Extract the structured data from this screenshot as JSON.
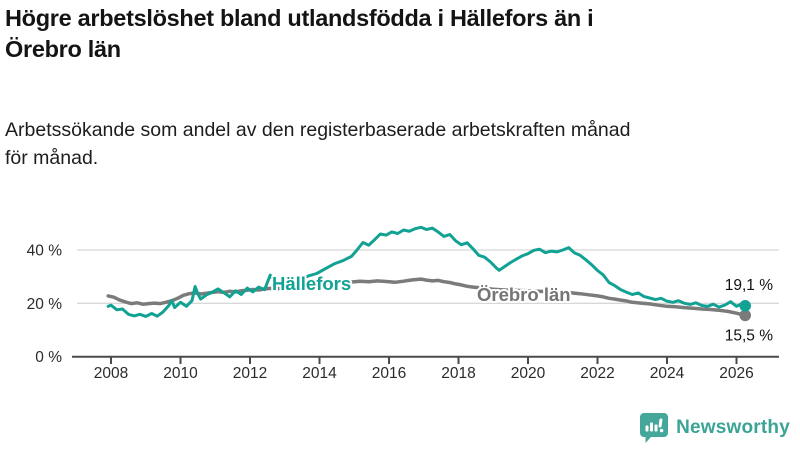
{
  "header": {
    "title_lines": [
      "Högre arbetslöshet bland utlandsfödda i Hällefors än i",
      "Örebro län"
    ],
    "subtitle_lines": [
      "Arbetssökande som andel av den registerbaserade arbetskraften månad",
      "för månad."
    ]
  },
  "footer": {
    "brand": "Newsworthy",
    "brand_color": "#3BA495"
  },
  "chart_data": {
    "type": "line",
    "unit": "%",
    "x_axis": {
      "ticks": [
        2008,
        2010,
        2012,
        2014,
        2016,
        2018,
        2020,
        2022,
        2024,
        2026
      ],
      "range": [
        2007.9,
        2026.4
      ]
    },
    "y_axis": {
      "ticks": [
        {
          "value": 0,
          "label": "0 %"
        },
        {
          "value": 20,
          "label": "20 %"
        },
        {
          "value": 40,
          "label": "40 %"
        }
      ],
      "range": [
        0,
        50
      ],
      "grid": true
    },
    "style": {
      "grid_color": "#d8d8d8",
      "axis_color": "#4a4a4a",
      "tick_label_color": "#2b2b2b",
      "end_label_color": "#111111",
      "background": "#ffffff"
    },
    "series": [
      {
        "id": "hallefors",
        "label": "Hällefors",
        "color": "#11A294",
        "width": 3,
        "end_label": "19,1 %",
        "end_value": 19.1,
        "points": [
          [
            2007.92,
            18.9
          ],
          [
            2008.0,
            19.3
          ],
          [
            2008.17,
            17.6
          ],
          [
            2008.33,
            17.9
          ],
          [
            2008.5,
            15.9
          ],
          [
            2008.67,
            15.3
          ],
          [
            2008.83,
            15.9
          ],
          [
            2009.0,
            15.1
          ],
          [
            2009.17,
            16.2
          ],
          [
            2009.33,
            15.2
          ],
          [
            2009.5,
            16.8
          ],
          [
            2009.67,
            19.3
          ],
          [
            2009.75,
            21.0
          ],
          [
            2009.83,
            18.4
          ],
          [
            2010.0,
            20.4
          ],
          [
            2010.17,
            18.9
          ],
          [
            2010.33,
            21.0
          ],
          [
            2010.42,
            26.3
          ],
          [
            2010.5,
            23.5
          ],
          [
            2010.58,
            21.6
          ],
          [
            2010.75,
            23.2
          ],
          [
            2010.92,
            24.2
          ],
          [
            2011.08,
            25.4
          ],
          [
            2011.25,
            24.0
          ],
          [
            2011.42,
            22.4
          ],
          [
            2011.58,
            24.7
          ],
          [
            2011.75,
            23.3
          ],
          [
            2011.92,
            25.7
          ],
          [
            2012.08,
            24.3
          ],
          [
            2012.25,
            26.1
          ],
          [
            2012.42,
            25.1
          ],
          [
            2012.58,
            30.6
          ],
          [
            2012.75,
            27.6
          ],
          [
            2012.92,
            28.4
          ],
          [
            2013.17,
            29.3
          ],
          [
            2013.42,
            28.7
          ],
          [
            2013.67,
            30.2
          ],
          [
            2013.92,
            31.2
          ],
          [
            2014.17,
            33.0
          ],
          [
            2014.42,
            34.8
          ],
          [
            2014.67,
            36.0
          ],
          [
            2014.92,
            37.6
          ],
          [
            2015.08,
            40.0
          ],
          [
            2015.25,
            42.8
          ],
          [
            2015.42,
            41.8
          ],
          [
            2015.58,
            43.8
          ],
          [
            2015.75,
            46.0
          ],
          [
            2015.92,
            45.6
          ],
          [
            2016.08,
            46.8
          ],
          [
            2016.25,
            46.2
          ],
          [
            2016.42,
            47.5
          ],
          [
            2016.58,
            47.0
          ],
          [
            2016.75,
            48.0
          ],
          [
            2016.92,
            48.5
          ],
          [
            2017.08,
            47.7
          ],
          [
            2017.25,
            48.2
          ],
          [
            2017.42,
            46.7
          ],
          [
            2017.58,
            45.1
          ],
          [
            2017.75,
            45.8
          ],
          [
            2017.92,
            43.4
          ],
          [
            2018.08,
            42.0
          ],
          [
            2018.25,
            42.7
          ],
          [
            2018.42,
            40.4
          ],
          [
            2018.58,
            38.0
          ],
          [
            2018.75,
            37.3
          ],
          [
            2018.92,
            35.5
          ],
          [
            2019.08,
            33.4
          ],
          [
            2019.17,
            32.4
          ],
          [
            2019.33,
            33.8
          ],
          [
            2019.5,
            35.3
          ],
          [
            2019.67,
            36.6
          ],
          [
            2019.83,
            37.8
          ],
          [
            2020.0,
            38.6
          ],
          [
            2020.17,
            39.9
          ],
          [
            2020.33,
            40.3
          ],
          [
            2020.5,
            39.0
          ],
          [
            2020.67,
            39.6
          ],
          [
            2020.83,
            39.3
          ],
          [
            2021.0,
            40.0
          ],
          [
            2021.17,
            40.9
          ],
          [
            2021.33,
            39.0
          ],
          [
            2021.5,
            38.0
          ],
          [
            2021.67,
            36.3
          ],
          [
            2021.83,
            34.5
          ],
          [
            2022.0,
            32.3
          ],
          [
            2022.17,
            30.6
          ],
          [
            2022.33,
            27.8
          ],
          [
            2022.5,
            26.6
          ],
          [
            2022.67,
            25.1
          ],
          [
            2022.83,
            24.2
          ],
          [
            2023.0,
            23.3
          ],
          [
            2023.17,
            23.9
          ],
          [
            2023.33,
            22.6
          ],
          [
            2023.5,
            22.0
          ],
          [
            2023.67,
            21.4
          ],
          [
            2023.83,
            21.9
          ],
          [
            2024.0,
            20.8
          ],
          [
            2024.17,
            20.4
          ],
          [
            2024.33,
            21.0
          ],
          [
            2024.5,
            20.0
          ],
          [
            2024.67,
            19.6
          ],
          [
            2024.83,
            20.2
          ],
          [
            2025.0,
            19.2
          ],
          [
            2025.17,
            18.9
          ],
          [
            2025.33,
            19.7
          ],
          [
            2025.5,
            18.6
          ],
          [
            2025.67,
            19.4
          ],
          [
            2025.83,
            20.6
          ],
          [
            2026.0,
            18.9
          ],
          [
            2026.17,
            19.9
          ],
          [
            2026.25,
            19.1
          ]
        ]
      },
      {
        "id": "orebro-lan",
        "label": "Örebro län",
        "color": "#7b7b7b",
        "label_color": "#757575",
        "width": 3.5,
        "end_label": "15,5 %",
        "end_value": 15.5,
        "points": [
          [
            2007.92,
            22.8
          ],
          [
            2008.08,
            22.3
          ],
          [
            2008.25,
            21.2
          ],
          [
            2008.42,
            20.5
          ],
          [
            2008.58,
            19.9
          ],
          [
            2008.75,
            20.2
          ],
          [
            2008.92,
            19.7
          ],
          [
            2009.08,
            19.9
          ],
          [
            2009.25,
            20.1
          ],
          [
            2009.42,
            19.9
          ],
          [
            2009.58,
            20.4
          ],
          [
            2009.75,
            21.0
          ],
          [
            2009.92,
            21.9
          ],
          [
            2010.08,
            23.0
          ],
          [
            2010.25,
            23.6
          ],
          [
            2010.42,
            23.9
          ],
          [
            2010.58,
            23.5
          ],
          [
            2010.75,
            23.8
          ],
          [
            2010.92,
            24.1
          ],
          [
            2011.08,
            24.4
          ],
          [
            2011.25,
            24.1
          ],
          [
            2011.42,
            24.5
          ],
          [
            2011.58,
            24.3
          ],
          [
            2011.75,
            24.7
          ],
          [
            2011.92,
            24.9
          ],
          [
            2012.08,
            25.2
          ],
          [
            2012.25,
            25.0
          ],
          [
            2012.42,
            25.4
          ],
          [
            2012.58,
            25.6
          ],
          [
            2012.75,
            25.3
          ],
          [
            2012.92,
            25.8
          ],
          [
            2013.17,
            26.2
          ],
          [
            2013.42,
            26.5
          ],
          [
            2013.67,
            26.8
          ],
          [
            2013.92,
            27.1
          ],
          [
            2014.17,
            27.5
          ],
          [
            2014.42,
            27.9
          ],
          [
            2014.67,
            28.2
          ],
          [
            2014.92,
            28.0
          ],
          [
            2015.17,
            28.3
          ],
          [
            2015.42,
            28.1
          ],
          [
            2015.67,
            28.4
          ],
          [
            2015.92,
            28.2
          ],
          [
            2016.17,
            27.9
          ],
          [
            2016.42,
            28.3
          ],
          [
            2016.67,
            28.8
          ],
          [
            2016.92,
            29.1
          ],
          [
            2017.08,
            28.7
          ],
          [
            2017.25,
            28.4
          ],
          [
            2017.42,
            28.6
          ],
          [
            2017.58,
            28.1
          ],
          [
            2017.75,
            27.8
          ],
          [
            2017.92,
            27.3
          ],
          [
            2018.08,
            26.9
          ],
          [
            2018.25,
            26.4
          ],
          [
            2018.42,
            26.1
          ],
          [
            2018.67,
            25.8
          ],
          [
            2019.0,
            25.3
          ],
          [
            2019.5,
            24.9
          ],
          [
            2020.0,
            24.7
          ],
          [
            2020.5,
            24.4
          ],
          [
            2021.0,
            24.1
          ],
          [
            2021.25,
            23.9
          ],
          [
            2021.5,
            23.6
          ],
          [
            2021.75,
            23.2
          ],
          [
            2022.0,
            22.8
          ],
          [
            2022.17,
            22.4
          ],
          [
            2022.33,
            21.9
          ],
          [
            2022.5,
            21.6
          ],
          [
            2022.67,
            21.2
          ],
          [
            2022.83,
            20.9
          ],
          [
            2023.0,
            20.4
          ],
          [
            2023.25,
            20.1
          ],
          [
            2023.5,
            19.8
          ],
          [
            2023.75,
            19.3
          ],
          [
            2024.0,
            18.9
          ],
          [
            2024.25,
            18.7
          ],
          [
            2024.5,
            18.4
          ],
          [
            2024.75,
            18.2
          ],
          [
            2025.0,
            17.9
          ],
          [
            2025.25,
            17.7
          ],
          [
            2025.5,
            17.4
          ],
          [
            2025.75,
            17.0
          ],
          [
            2026.0,
            16.3
          ],
          [
            2026.25,
            15.5
          ]
        ]
      }
    ]
  }
}
